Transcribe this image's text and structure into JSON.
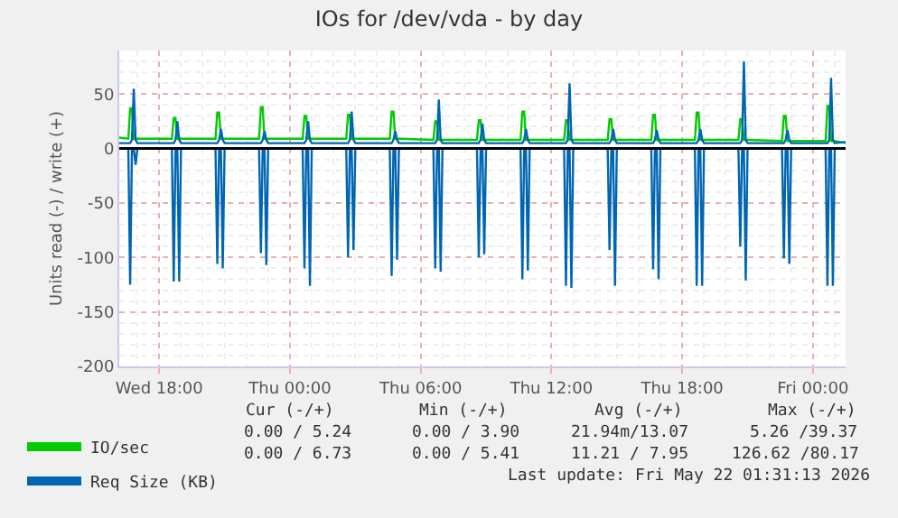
{
  "chart_data": {
    "type": "line",
    "title": "IOs for /dev/vda - by day",
    "ylabel": "Units read (-) / write (+)",
    "x": [
      "2026-05-20T16:10",
      "2026-05-20T16:35",
      "2026-05-20T16:40",
      "2026-05-20T16:45",
      "2026-05-20T16:50",
      "2026-05-20T16:55",
      "2026-05-20T17:00",
      "2026-05-20T18:35",
      "2026-05-20T18:40",
      "2026-05-20T18:45",
      "2026-05-20T18:50",
      "2026-05-20T18:55",
      "2026-05-20T19:00",
      "2026-05-20T20:35",
      "2026-05-20T20:40",
      "2026-05-20T20:45",
      "2026-05-20T20:50",
      "2026-05-20T20:55",
      "2026-05-20T21:00",
      "2026-05-20T22:35",
      "2026-05-20T22:40",
      "2026-05-20T22:45",
      "2026-05-20T22:50",
      "2026-05-20T22:55",
      "2026-05-20T23:00",
      "2026-05-21T00:35",
      "2026-05-21T00:40",
      "2026-05-21T00:45",
      "2026-05-21T00:50",
      "2026-05-21T00:55",
      "2026-05-21T01:00",
      "2026-05-21T02:35",
      "2026-05-21T02:40",
      "2026-05-21T02:45",
      "2026-05-21T02:50",
      "2026-05-21T02:55",
      "2026-05-21T03:00",
      "2026-05-21T04:35",
      "2026-05-21T04:40",
      "2026-05-21T04:45",
      "2026-05-21T04:50",
      "2026-05-21T04:55",
      "2026-05-21T05:00",
      "2026-05-21T06:35",
      "2026-05-21T06:40",
      "2026-05-21T06:45",
      "2026-05-21T06:50",
      "2026-05-21T06:55",
      "2026-05-21T07:00",
      "2026-05-21T08:35",
      "2026-05-21T08:40",
      "2026-05-21T08:45",
      "2026-05-21T08:50",
      "2026-05-21T08:55",
      "2026-05-21T09:00",
      "2026-05-21T10:35",
      "2026-05-21T10:40",
      "2026-05-21T10:45",
      "2026-05-21T10:50",
      "2026-05-21T10:55",
      "2026-05-21T11:00",
      "2026-05-21T12:35",
      "2026-05-21T12:40",
      "2026-05-21T12:45",
      "2026-05-21T12:50",
      "2026-05-21T12:55",
      "2026-05-21T13:00",
      "2026-05-21T14:35",
      "2026-05-21T14:40",
      "2026-05-21T14:45",
      "2026-05-21T14:50",
      "2026-05-21T14:55",
      "2026-05-21T15:00",
      "2026-05-21T16:35",
      "2026-05-21T16:40",
      "2026-05-21T16:45",
      "2026-05-21T16:50",
      "2026-05-21T16:55",
      "2026-05-21T17:00",
      "2026-05-21T18:35",
      "2026-05-21T18:40",
      "2026-05-21T18:45",
      "2026-05-21T18:50",
      "2026-05-21T18:55",
      "2026-05-21T19:00",
      "2026-05-21T20:35",
      "2026-05-21T20:40",
      "2026-05-21T20:45",
      "2026-05-21T20:50",
      "2026-05-21T20:55",
      "2026-05-21T21:00",
      "2026-05-21T22:35",
      "2026-05-21T22:40",
      "2026-05-21T22:45",
      "2026-05-21T22:50",
      "2026-05-21T22:55",
      "2026-05-21T23:00",
      "2026-05-22T00:35",
      "2026-05-22T00:40",
      "2026-05-22T00:45",
      "2026-05-22T00:50",
      "2026-05-22T00:55",
      "2026-05-22T01:00",
      "2026-05-22T01:30"
    ],
    "series": [
      {
        "name": "IO/sec",
        "color": "#00cc00",
        "values": [
          10,
          9,
          37,
          37,
          9,
          9,
          9,
          9,
          28,
          28,
          9,
          9,
          9,
          9,
          33,
          33,
          9,
          9,
          9,
          9,
          38,
          38,
          9,
          9,
          9,
          9,
          30,
          30,
          9,
          9,
          9,
          9,
          31,
          31,
          9,
          9,
          9,
          9,
          34,
          34,
          9,
          9,
          9,
          8,
          25,
          25,
          8,
          8,
          8,
          8,
          26,
          26,
          8,
          8,
          8,
          8,
          34,
          34,
          8,
          8,
          8,
          8,
          26,
          26,
          8,
          8,
          8,
          8,
          27,
          27,
          8,
          8,
          8,
          8,
          31,
          31,
          8,
          8,
          8,
          8,
          33,
          33,
          8,
          8,
          8,
          8,
          27,
          27,
          8,
          8,
          8,
          7,
          30,
          30,
          7,
          7,
          7,
          7,
          39,
          39,
          7,
          7,
          7,
          5
        ]
      },
      {
        "name": "Req Size (KB)",
        "color": "#0066b3",
        "values": [
          5,
          5,
          5,
          8,
          55,
          8,
          5,
          5,
          5,
          8,
          25,
          8,
          5,
          5,
          5,
          8,
          18,
          8,
          5,
          5,
          5,
          8,
          16,
          8,
          5,
          5,
          5,
          8,
          25,
          8,
          5,
          5,
          5,
          8,
          34,
          8,
          5,
          5,
          5,
          8,
          16,
          8,
          5,
          5,
          5,
          8,
          45,
          8,
          5,
          5,
          5,
          8,
          23,
          8,
          5,
          5,
          5,
          8,
          18,
          8,
          5,
          5,
          5,
          8,
          60,
          8,
          5,
          5,
          5,
          8,
          18,
          8,
          5,
          5,
          5,
          8,
          17,
          8,
          5,
          5,
          5,
          8,
          18,
          8,
          5,
          5,
          5,
          8,
          80,
          8,
          5,
          5,
          5,
          8,
          17,
          8,
          5,
          5,
          5,
          8,
          65,
          8,
          5,
          6
        ]
      },
      {
        "color": "#0066b3",
        "values": [
          0,
          0,
          -125,
          0,
          0,
          -15,
          0,
          0,
          -122,
          0,
          0,
          -122,
          0,
          0,
          -106,
          0,
          0,
          -110,
          0,
          0,
          -96,
          0,
          0,
          -107,
          0,
          0,
          -110,
          0,
          0,
          -126,
          0,
          0,
          -100,
          0,
          0,
          -93,
          0,
          0,
          -117,
          0,
          0,
          -102,
          0,
          0,
          -110,
          0,
          0,
          -113,
          0,
          0,
          -100,
          0,
          0,
          -97,
          0,
          0,
          -120,
          0,
          0,
          -112,
          0,
          0,
          -126,
          0,
          0,
          -128,
          0,
          0,
          -93,
          0,
          0,
          -126,
          0,
          0,
          -111,
          0,
          0,
          -120,
          0,
          0,
          -126,
          0,
          0,
          -126,
          0,
          0,
          -90,
          0,
          0,
          -121,
          0,
          0,
          -101,
          0,
          0,
          -106,
          0,
          0,
          -126,
          0,
          0,
          -126,
          0,
          0
        ]
      }
    ],
    "xlim": [
      "2026-05-20T16:10",
      "2026-05-22T01:30"
    ],
    "xticks": [
      {
        "value": "2026-05-20T18:00",
        "label": "Wed 18:00"
      },
      {
        "value": "2026-05-21T00:00",
        "label": "Thu 00:00"
      },
      {
        "value": "2026-05-21T06:00",
        "label": "Thu 06:00"
      },
      {
        "value": "2026-05-21T12:00",
        "label": "Thu 12:00"
      },
      {
        "value": "2026-05-21T18:00",
        "label": "Thu 18:00"
      },
      {
        "value": "2026-05-22T00:00",
        "label": "Fri 00:00"
      }
    ],
    "ylim": [
      -200,
      90
    ],
    "yticks": [
      50,
      0,
      -50,
      -100,
      -150,
      -200
    ],
    "ref_lines": [
      {
        "axis": "y",
        "value": 0,
        "color": "#000000"
      }
    ],
    "grid": true,
    "legend": "bottom left",
    "marker": "none",
    "line_style": "solid",
    "annotations": [
      "Cur (-/+)",
      "Min (-/+)",
      "Avg (-/+)",
      "Max (-/+)",
      "0.00 / 5.24",
      "0.00 / 3.90",
      "21.94m/13.07",
      "5.26 /39.37",
      "0.00 / 6.73",
      "0.00 / 5.41",
      "11.21 / 7.95",
      "126.62 /80.17",
      "Last update: Fri May 22 01:31:13 2026"
    ]
  }
}
